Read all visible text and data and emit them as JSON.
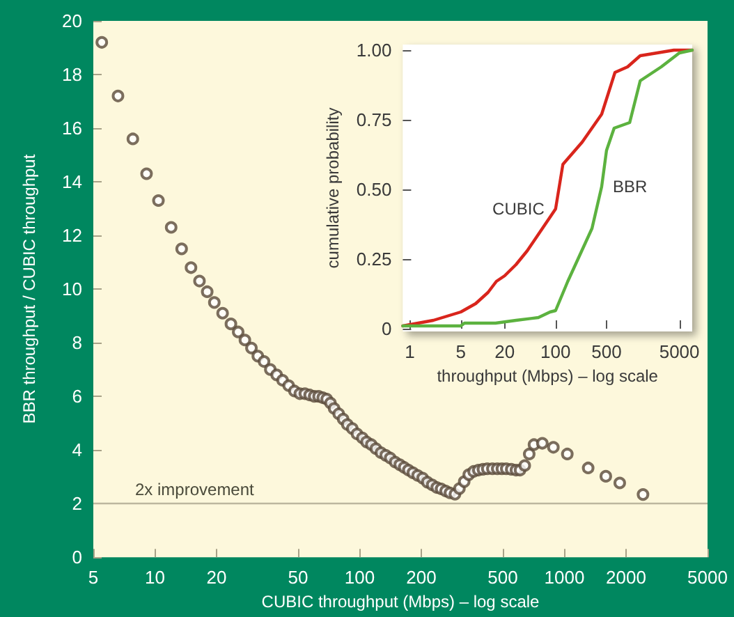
{
  "chart_data": [
    {
      "type": "scatter",
      "xlabel": "CUBIC throughput (Mbps) – log scale",
      "ylabel": "BBR throughput / CUBIC throughput",
      "log": "x",
      "marker": "circle",
      "color": "#5a4a3a",
      "grid": false,
      "legend": false,
      "xlim": [
        5,
        5000
      ],
      "xticks": [
        5,
        10,
        20,
        50,
        100,
        200,
        500,
        1000,
        2000,
        5000
      ],
      "ylim": [
        0,
        20
      ],
      "yticks": [
        0,
        2,
        4,
        6,
        8,
        10,
        12,
        14,
        16,
        18,
        20
      ],
      "x": [
        5.5,
        6.6,
        7.8,
        9.1,
        10.4,
        12.0,
        13.5,
        15,
        16.5,
        18,
        19.5,
        21.4,
        23.5,
        25.5,
        27.5,
        29.6,
        31.8,
        34.1,
        36.6,
        39.3,
        42,
        45,
        48,
        51,
        54,
        57,
        60,
        63,
        66,
        69,
        72,
        75,
        79,
        83,
        87,
        92,
        97,
        103,
        108,
        114,
        120,
        127,
        134,
        141,
        149,
        157,
        165,
        173,
        182,
        192,
        203,
        214,
        226,
        238,
        250,
        263,
        276,
        292,
        307,
        324,
        341,
        360,
        380,
        400,
        420,
        445,
        470,
        495,
        520,
        550,
        580,
        607,
        640,
        673,
        710,
        780,
        883,
        1033,
        1306,
        1593,
        1863,
        2420
      ],
      "values": [
        19.2,
        17.2,
        15.6,
        14.3,
        13.3,
        12.3,
        11.5,
        10.8,
        10.3,
        9.9,
        9.5,
        9.1,
        8.7,
        8.4,
        8.1,
        7.8,
        7.5,
        7.3,
        7.0,
        6.8,
        6.6,
        6.4,
        6.2,
        6.1,
        6.1,
        6.05,
        6.0,
        6.0,
        5.95,
        5.9,
        5.75,
        5.55,
        5.35,
        5.15,
        4.95,
        4.8,
        4.6,
        4.45,
        4.3,
        4.2,
        4.05,
        3.9,
        3.8,
        3.7,
        3.55,
        3.45,
        3.35,
        3.25,
        3.15,
        3.05,
        2.95,
        2.8,
        2.7,
        2.6,
        2.55,
        2.47,
        2.4,
        2.35,
        2.56,
        2.82,
        3.08,
        3.2,
        3.25,
        3.28,
        3.3,
        3.3,
        3.3,
        3.3,
        3.3,
        3.28,
        3.25,
        3.25,
        3.42,
        3.85,
        4.2,
        4.25,
        4.1,
        3.85,
        3.33,
        3.02,
        2.77,
        2.34
      ],
      "ref_lines": [
        {
          "axis": "y",
          "value": 2,
          "label": "2x improvement",
          "color": "#bdb79e"
        }
      ]
    },
    {
      "type": "line",
      "xlabel": "throughput (Mbps) – log scale",
      "ylabel": "cumulative probability",
      "log": "x",
      "marker": "none",
      "grid": false,
      "legend": false,
      "xlim": [
        0.8,
        7500
      ],
      "xticks": [
        1,
        5,
        20,
        100,
        500,
        5000
      ],
      "ylim": [
        -0.01,
        1.02
      ],
      "yticks": [
        {
          "value": 0,
          "label": "0"
        },
        {
          "value": 0.25,
          "label": "0.25"
        },
        {
          "value": 0.5,
          "label": "0.50"
        },
        {
          "value": 0.75,
          "label": "0.75"
        },
        {
          "value": 1,
          "label": "1.00"
        }
      ],
      "series": [
        {
          "name": "CUBIC",
          "color": "#d9251c",
          "x": [
            0.8,
            2.1,
            5,
            8,
            11.8,
            15.4,
            20,
            28.6,
            40.9,
            58.5,
            83.7,
            100,
            126,
            232,
            429,
            653,
            973,
            1450,
            2470,
            4200,
            7500
          ],
          "values": [
            0.01,
            0.03,
            0.06,
            0.09,
            0.13,
            0.17,
            0.19,
            0.23,
            0.28,
            0.34,
            0.4,
            0.43,
            0.59,
            0.67,
            0.77,
            0.92,
            0.94,
            0.98,
            0.99,
            1.0,
            1.0
          ]
        },
        {
          "name": "BBR",
          "color": "#5cb23f",
          "x": [
            0.8,
            5,
            5.6,
            15,
            28.6,
            58,
            84,
            100,
            147,
            316,
            429,
            500,
            636,
            1040,
            1450,
            2820,
            5000,
            7500
          ],
          "values": [
            0.01,
            0.01,
            0.02,
            0.02,
            0.03,
            0.04,
            0.06,
            0.065,
            0.17,
            0.36,
            0.51,
            0.64,
            0.72,
            0.74,
            0.89,
            0.94,
            0.99,
            1.0
          ]
        }
      ]
    }
  ]
}
